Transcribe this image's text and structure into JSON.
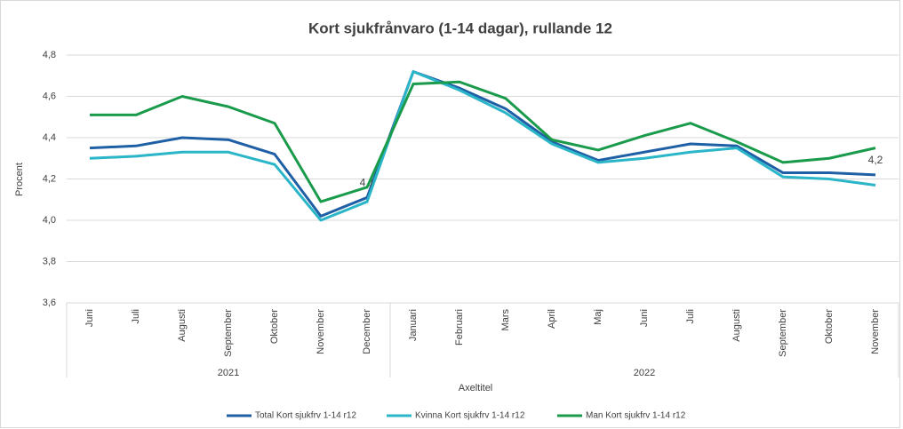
{
  "chart_data": {
    "type": "line",
    "title": "Kort sjukfrånvaro (1-14 dagar), rullande 12",
    "y_label": "Procent",
    "x_label": "Axeltitel",
    "categories": [
      "Juni",
      "Juli",
      "Augusti",
      "September",
      "Oktober",
      "November",
      "December",
      "Januari",
      "Februari",
      "Mars",
      "April",
      "Maj",
      "Juni",
      "Juli",
      "Augusti",
      "September",
      "Oktober",
      "November"
    ],
    "x_groups": [
      {
        "label": "2021",
        "span": 7
      },
      {
        "label": "2022",
        "span": 11
      }
    ],
    "ylim": [
      3.6,
      4.8
    ],
    "yticks": [
      {
        "value": 3.6,
        "label": "3,6"
      },
      {
        "value": 3.8,
        "label": "3,8"
      },
      {
        "value": 4.0,
        "label": "4,0"
      },
      {
        "value": 4.2,
        "label": "4,2"
      },
      {
        "value": 4.4,
        "label": "4,4"
      },
      {
        "value": 4.6,
        "label": "4,6"
      },
      {
        "value": 4.8,
        "label": "4,8"
      }
    ],
    "grid": true,
    "legend": "bottom",
    "series": [
      {
        "name": "Total Kort sjukfrv 1-14 r12",
        "color": "#1f5fa5",
        "values": [
          4.35,
          4.36,
          4.4,
          4.39,
          4.32,
          4.02,
          4.11,
          4.72,
          4.64,
          4.54,
          4.38,
          4.29,
          4.33,
          4.37,
          4.36,
          4.23,
          4.23,
          4.22
        ],
        "value_labels": [
          null,
          null,
          null,
          null,
          null,
          null,
          "4,1",
          null,
          null,
          null,
          null,
          null,
          null,
          null,
          null,
          null,
          null,
          "4,2"
        ]
      },
      {
        "name": "Kvinna Kort sjukfrv 1-14 r12",
        "color": "#2bb5c8",
        "values": [
          4.3,
          4.31,
          4.33,
          4.33,
          4.27,
          4.0,
          4.09,
          4.72,
          4.63,
          4.52,
          4.37,
          4.28,
          4.3,
          4.33,
          4.35,
          4.21,
          4.2,
          4.17
        ]
      },
      {
        "name": "Man Kort sjukfrv 1-14 r12",
        "color": "#1a9b4b",
        "values": [
          4.51,
          4.51,
          4.6,
          4.55,
          4.47,
          4.09,
          4.16,
          4.66,
          4.67,
          4.59,
          4.39,
          4.34,
          4.41,
          4.47,
          4.38,
          4.28,
          4.3,
          4.35
        ]
      }
    ]
  }
}
